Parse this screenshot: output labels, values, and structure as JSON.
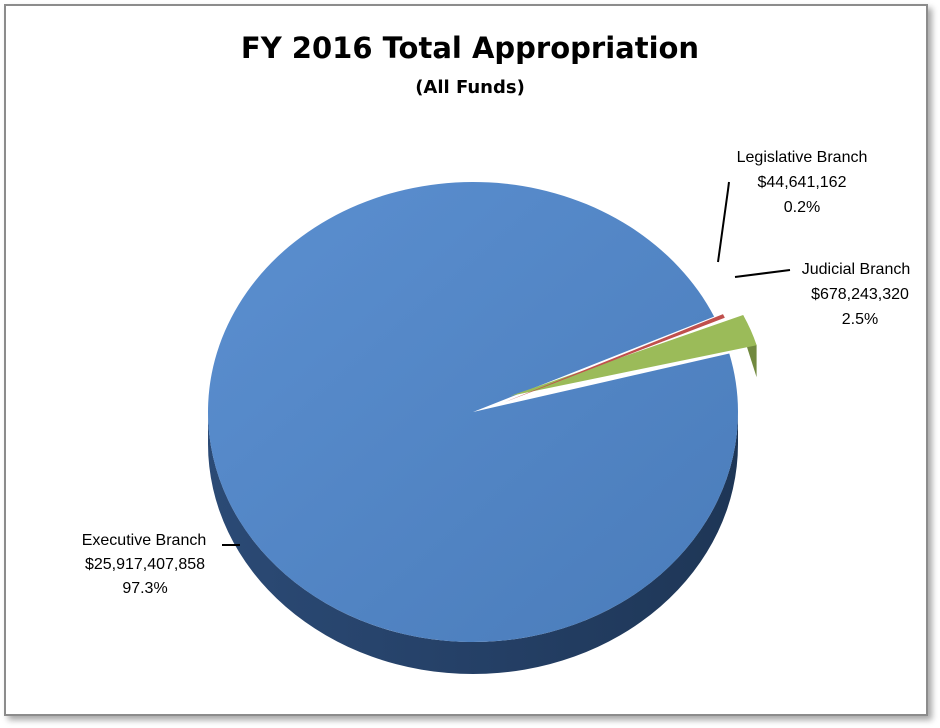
{
  "chart_data": {
    "type": "pie",
    "title": "FY 2016 Total Appropriation",
    "subtitle": "(All Funds)",
    "slices": [
      {
        "name": "Executive Branch",
        "value_label": "$25,917,407,858",
        "value": 25917407858,
        "percent_label": "97.3%",
        "color": "#4f81bd"
      },
      {
        "name": "Legislative Branch",
        "value_label": "$44,641,162",
        "value": 44641162,
        "percent_label": "0.2%",
        "color": "#c0504d"
      },
      {
        "name": "Judicial Branch",
        "value_label": "$678,243,320",
        "value": 678243320,
        "percent_label": "2.5%",
        "color": "#9bbb59"
      }
    ],
    "style": "3d-pie",
    "legend": "none",
    "data_labels": "outside-with-leader-lines"
  }
}
